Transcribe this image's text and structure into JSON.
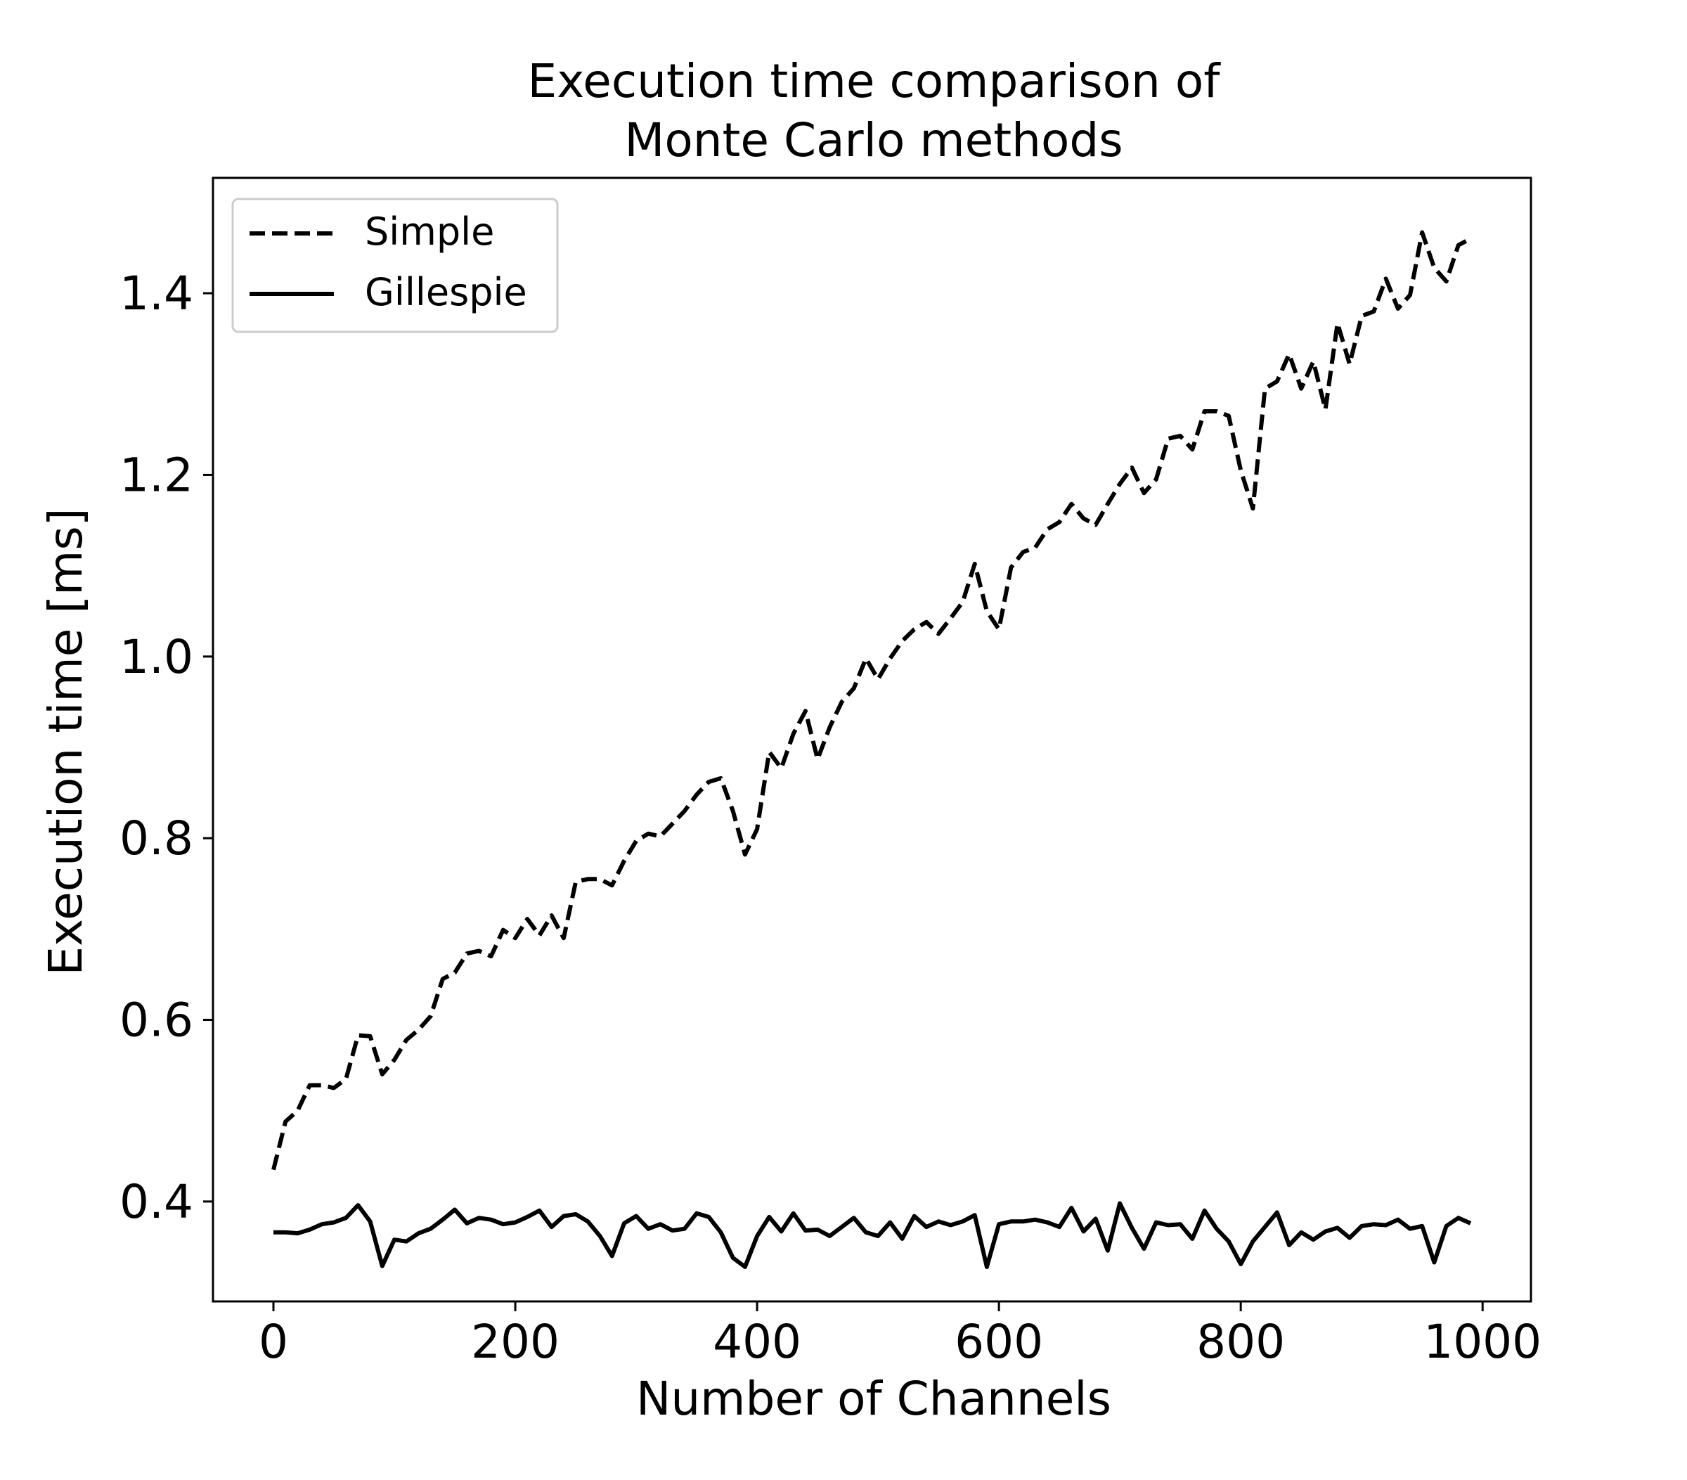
{
  "chart_data": {
    "type": "line",
    "title": "Execution time comparison of\nMonte Carlo methods",
    "xlabel": "Number of Channels",
    "ylabel": "Execution time [ms]",
    "xlim": [
      -50,
      1040
    ],
    "ylim": [
      0.29,
      1.527
    ],
    "xticks": [
      0,
      200,
      400,
      600,
      800,
      1000
    ],
    "yticks": [
      0.4,
      0.6,
      0.8,
      1.0,
      1.2,
      1.4
    ],
    "xtick_labels": [
      "0",
      "200",
      "400",
      "600",
      "800",
      "1000"
    ],
    "ytick_labels": [
      "0.4",
      "0.6",
      "0.8",
      "1.0",
      "1.2",
      "1.4"
    ],
    "grid": false,
    "legend_position": "upper-left",
    "x": [
      0,
      10,
      20,
      30,
      40,
      50,
      60,
      70,
      80,
      90,
      100,
      110,
      120,
      130,
      140,
      150,
      160,
      170,
      180,
      190,
      200,
      210,
      220,
      230,
      240,
      250,
      260,
      270,
      280,
      290,
      300,
      310,
      320,
      330,
      340,
      350,
      360,
      370,
      380,
      390,
      400,
      410,
      420,
      430,
      440,
      450,
      460,
      470,
      480,
      490,
      500,
      510,
      520,
      530,
      540,
      550,
      560,
      570,
      580,
      590,
      600,
      610,
      620,
      630,
      640,
      650,
      660,
      670,
      680,
      690,
      700,
      710,
      720,
      730,
      740,
      750,
      760,
      770,
      780,
      790,
      800,
      810,
      820,
      830,
      840,
      850,
      860,
      870,
      880,
      890,
      900,
      910,
      920,
      930,
      940,
      950,
      960,
      970,
      980,
      990
    ],
    "series": [
      {
        "name": "Simple",
        "style": "dashed",
        "color": "#000000",
        "values": [
          0.435,
          0.488,
          0.5,
          0.528,
          0.528,
          0.525,
          0.535,
          0.583,
          0.582,
          0.54,
          0.556,
          0.578,
          0.589,
          0.604,
          0.645,
          0.652,
          0.673,
          0.676,
          0.67,
          0.699,
          0.69,
          0.711,
          0.693,
          0.715,
          0.69,
          0.752,
          0.755,
          0.755,
          0.748,
          0.775,
          0.797,
          0.805,
          0.802,
          0.816,
          0.83,
          0.848,
          0.862,
          0.866,
          0.83,
          0.782,
          0.81,
          0.895,
          0.877,
          0.915,
          0.94,
          0.887,
          0.922,
          0.95,
          0.965,
          0.998,
          0.975,
          0.998,
          1.017,
          1.03,
          1.038,
          1.025,
          1.042,
          1.06,
          1.102,
          1.05,
          1.03,
          1.098,
          1.115,
          1.12,
          1.14,
          1.148,
          1.168,
          1.152,
          1.145,
          1.168,
          1.19,
          1.208,
          1.18,
          1.195,
          1.24,
          1.243,
          1.228,
          1.27,
          1.27,
          1.265,
          1.205,
          1.163,
          1.295,
          1.303,
          1.333,
          1.295,
          1.325,
          1.272,
          1.367,
          1.322,
          1.375,
          1.38,
          1.416,
          1.383,
          1.398,
          1.467,
          1.428,
          1.413,
          1.453,
          1.46
        ]
      },
      {
        "name": "Gillespie",
        "style": "solid",
        "color": "#000000",
        "values": [
          0.366,
          0.366,
          0.365,
          0.369,
          0.375,
          0.377,
          0.382,
          0.396,
          0.378,
          0.329,
          0.358,
          0.356,
          0.365,
          0.37,
          0.38,
          0.391,
          0.376,
          0.382,
          0.38,
          0.375,
          0.377,
          0.383,
          0.39,
          0.372,
          0.384,
          0.386,
          0.378,
          0.362,
          0.34,
          0.376,
          0.384,
          0.37,
          0.375,
          0.368,
          0.37,
          0.387,
          0.383,
          0.366,
          0.338,
          0.328,
          0.362,
          0.383,
          0.367,
          0.387,
          0.368,
          0.369,
          0.362,
          0.372,
          0.382,
          0.366,
          0.362,
          0.377,
          0.359,
          0.384,
          0.372,
          0.378,
          0.374,
          0.378,
          0.385,
          0.328,
          0.375,
          0.378,
          0.378,
          0.38,
          0.377,
          0.372,
          0.393,
          0.367,
          0.381,
          0.346,
          0.398,
          0.371,
          0.348,
          0.377,
          0.374,
          0.375,
          0.359,
          0.39,
          0.37,
          0.356,
          0.331,
          0.356,
          0.372,
          0.388,
          0.352,
          0.366,
          0.358,
          0.367,
          0.371,
          0.36,
          0.373,
          0.375,
          0.374,
          0.38,
          0.37,
          0.373,
          0.333,
          0.373,
          0.382,
          0.376
        ]
      }
    ]
  }
}
